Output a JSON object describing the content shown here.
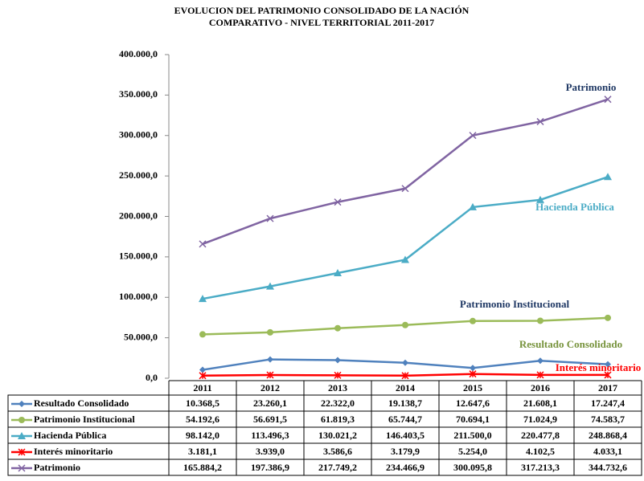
{
  "chart_data": {
    "type": "line",
    "title": "EVOLUCION DEL PATRIMONIO CONSOLIDADO DE LA NACIÓN",
    "subtitle": "COMPARATIVO  - NIVEL TERRITORIAL   2011-2017",
    "categories": [
      "2011",
      "2012",
      "2013",
      "2014",
      "2015",
      "2016",
      "2017"
    ],
    "ylim": [
      0,
      400000
    ],
    "yticks": [
      {
        "value": 0,
        "label": "0,0"
      },
      {
        "value": 50000,
        "label": "50.000,0"
      },
      {
        "value": 100000,
        "label": "100.000,0"
      },
      {
        "value": 150000,
        "label": "150.000,0"
      },
      {
        "value": 200000,
        "label": "200.000,0"
      },
      {
        "value": 250000,
        "label": "250.000,0"
      },
      {
        "value": 300000,
        "label": "300.000,0"
      },
      {
        "value": 350000,
        "label": "350.000,0"
      },
      {
        "value": 400000,
        "label": "400.000,0"
      }
    ],
    "grid": false,
    "series": [
      {
        "name": "Resultado Consolidado",
        "color": "#4f81bd",
        "marker": "diamond",
        "values": [
          10368.5,
          23260.1,
          22322.0,
          19138.7,
          12647.6,
          21608.1,
          17247.4
        ],
        "value_labels": [
          "10.368,5",
          "23.260,1",
          "22.322,0",
          "19.138,7",
          "12.647,6",
          "21.608,1",
          "17.247,4"
        ]
      },
      {
        "name": "Patrimonio Institucional",
        "color": "#9bbb59",
        "marker": "circle",
        "values": [
          54192.6,
          56691.5,
          61819.3,
          65744.7,
          70694.1,
          71024.9,
          74583.7
        ],
        "value_labels": [
          "54.192,6",
          "56.691,5",
          "61.819,3",
          "65.744,7",
          "70.694,1",
          "71.024,9",
          "74.583,7"
        ]
      },
      {
        "name": "Hacienda Pública",
        "color": "#4bacc6",
        "marker": "triangle",
        "values": [
          98142.0,
          113496.3,
          130021.2,
          146403.5,
          211500.0,
          220477.8,
          248868.4
        ],
        "value_labels": [
          "98.142,0",
          "113.496,3",
          "130.021,2",
          "146.403,5",
          "211.500,0",
          "220.477,8",
          "248.868,4"
        ]
      },
      {
        "name": "Interés minoritario",
        "color": "#ff0000",
        "marker": "star",
        "values": [
          3181.1,
          3939.0,
          3586.6,
          3179.9,
          5254.0,
          4102.5,
          4033.1
        ],
        "value_labels": [
          "3.181,1",
          "3.939,0",
          "3.586,6",
          "3.179,9",
          "5.254,0",
          "4.102,5",
          "4.033,1"
        ]
      },
      {
        "name": "Patrimonio",
        "color": "#8064a2",
        "marker": "x",
        "values": [
          165884.2,
          197386.9,
          217749.2,
          234466.9,
          300095.8,
          317213.3,
          344732.6
        ],
        "value_labels": [
          "165.884,2",
          "197.386,9",
          "217.749,2",
          "234.466,9",
          "300.095,8",
          "317.213,3",
          "344.732,6"
        ]
      }
    ]
  }
}
